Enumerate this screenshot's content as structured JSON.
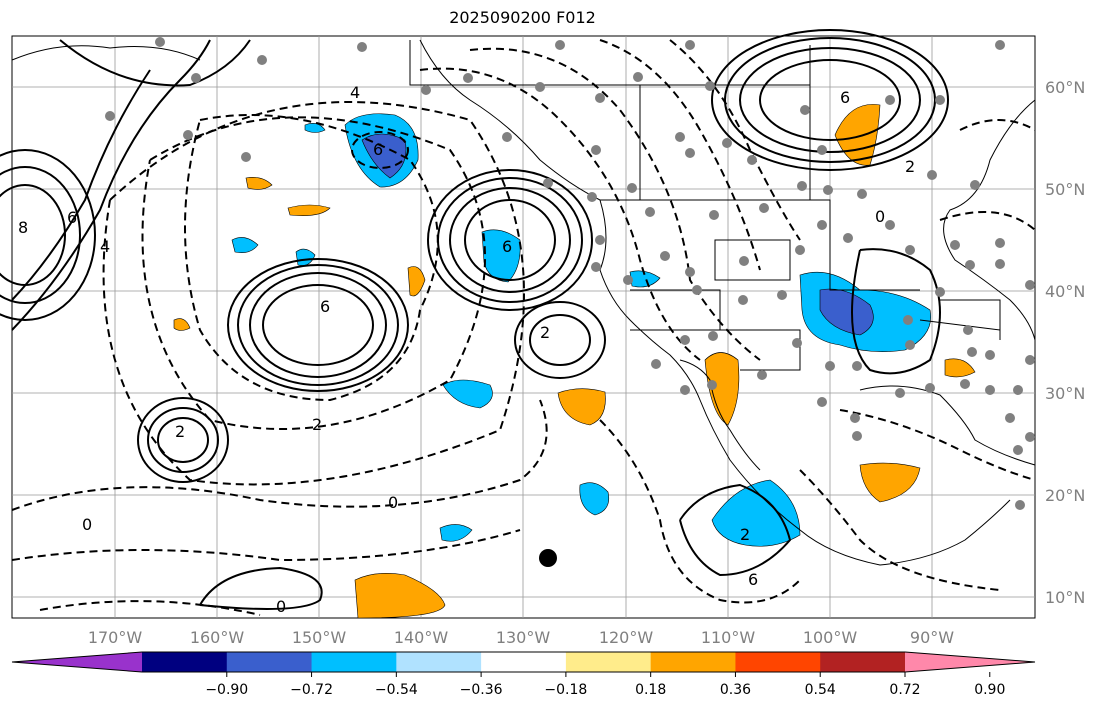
{
  "title": "2025090200 F012",
  "lat_labels": [
    "60°N",
    "50°N",
    "40°N",
    "30°N",
    "20°N",
    "10°N"
  ],
  "lon_labels": [
    "170°W",
    "160°W",
    "150°W",
    "140°W",
    "130°W",
    "120°W",
    "110°W",
    "100°W",
    "90°W"
  ],
  "colorbar": {
    "ticks": [
      "−0.90",
      "−0.72",
      "−0.54",
      "−0.36",
      "−0.18",
      "0.18",
      "0.36",
      "0.54",
      "0.72",
      "0.90"
    ],
    "colors": [
      "#9932cc",
      "#000080",
      "#3a5fcd",
      "#00bfff",
      "#b0e2ff",
      "#ffffff",
      "#ffec8b",
      "#ffa500",
      "#ff4500",
      "#b22222",
      "#ff88aa"
    ]
  },
  "contour_labels": {
    "c1": "6",
    "c2": "6",
    "c3": "6",
    "c4": "6",
    "c5": "6",
    "c6": "6",
    "c7": "2",
    "c8": "2",
    "c9": "2",
    "c10": "2",
    "c11": "0",
    "c12": "0",
    "c13": "0",
    "c14": "4",
    "c15": "4",
    "c16": "8",
    "c17": "2",
    "c18": "0"
  }
}
